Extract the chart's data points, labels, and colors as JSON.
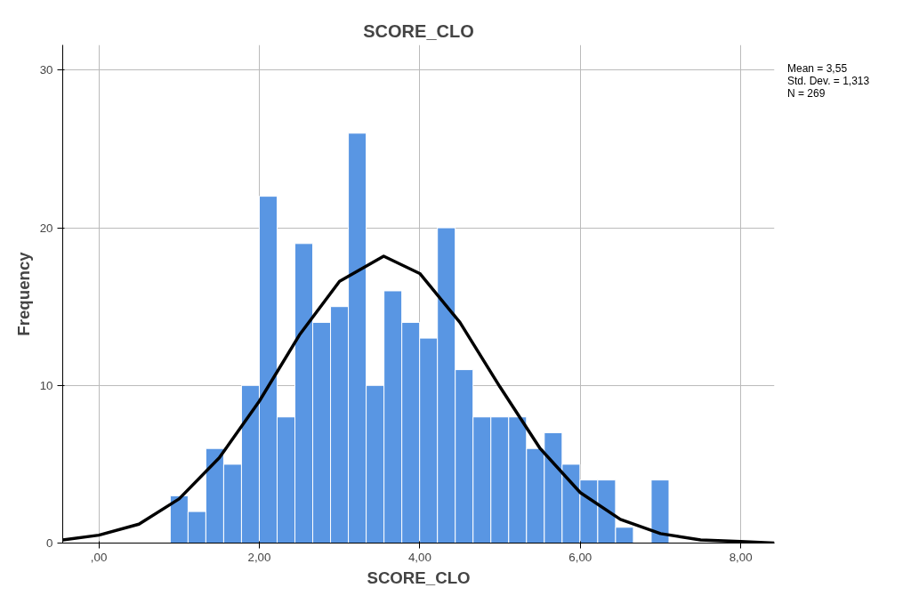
{
  "chart_data": {
    "title": "SCORE_CLO",
    "xlabel": "SCORE_CLO",
    "ylabel": "Frequency",
    "annotations": [
      "Mean = 3,55",
      "Std. Dev. = 1,313",
      "N = 269"
    ],
    "series": [
      {
        "color": "#5996e3",
        "bins": [
          0.89,
          1.112,
          1.334,
          1.556,
          1.778,
          2.0,
          2.222,
          2.444,
          2.666,
          2.888,
          3.11,
          3.332,
          3.554,
          3.776,
          3.998,
          4.22,
          4.442,
          4.664,
          4.886,
          5.108,
          5.33,
          5.552,
          5.774,
          5.996,
          6.218,
          6.44,
          6.662,
          6.884,
          7.106
        ],
        "values": [
          3,
          2,
          6,
          5,
          10,
          22,
          8,
          19,
          14,
          15,
          26,
          10,
          16,
          14,
          13,
          20,
          11,
          8,
          8,
          8,
          6,
          7,
          5,
          4,
          4,
          1,
          0,
          4
        ]
      },
      {
        "type": "line",
        "color": "#000000",
        "x": [
          -0.45,
          0,
          0.5,
          1,
          1.5,
          2,
          2.5,
          3,
          3.55,
          4,
          4.5,
          5,
          5.5,
          6,
          6.5,
          7,
          7.5,
          8,
          8.42
        ],
        "values": [
          0.2,
          0.5,
          1.2,
          2.8,
          5.4,
          9.0,
          13.2,
          16.6,
          18.2,
          17.1,
          14.0,
          9.9,
          6.0,
          3.2,
          1.5,
          0.6,
          0.2,
          0.1,
          0.0
        ]
      }
    ],
    "xlim": [
      -0.45,
      8.42
    ],
    "ylim": [
      0,
      31.6
    ],
    "xticks": [
      {
        "value": 0,
        "label": ",00"
      },
      {
        "value": 2,
        "label": "2,00"
      },
      {
        "value": 4,
        "label": "4,00"
      },
      {
        "value": 6,
        "label": "6,00"
      },
      {
        "value": 8,
        "label": "8,00"
      }
    ],
    "yticks": [
      0,
      10,
      20,
      30
    ],
    "grid": true,
    "type": "histogram"
  }
}
